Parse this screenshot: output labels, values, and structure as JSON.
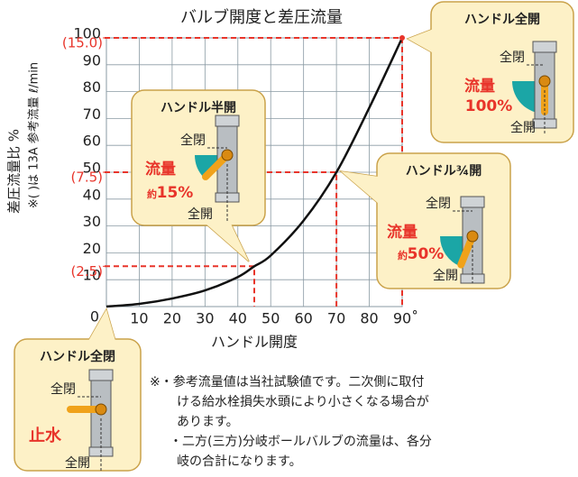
{
  "chart_data": {
    "type": "line",
    "title": "バルブ開度と差圧流量",
    "x_label": "ハンドル開度",
    "y_label": "差圧流量比 %",
    "y_label_note": "※( )は 13A 参考流量 ℓ/min",
    "x": [
      0,
      10,
      20,
      30,
      40,
      45,
      50,
      60,
      70,
      80,
      90
    ],
    "series": [
      {
        "color": "#111111",
        "values": [
          0,
          1,
          3,
          6,
          11,
          15,
          19,
          32,
          50,
          74,
          100
        ]
      }
    ],
    "xlim": [
      0,
      90
    ],
    "ylim": [
      0,
      100
    ],
    "xticks": [
      10,
      20,
      30,
      40,
      50,
      60,
      70,
      80,
      {
        "value": 90,
        "label": "90˚"
      }
    ],
    "yticks": [
      0,
      10,
      20,
      30,
      40,
      50,
      60,
      70,
      80,
      90,
      100
    ],
    "flow_ticks": [
      {
        "value": 100,
        "label": "(15.0)"
      },
      {
        "value": 50,
        "label": "(7.5)"
      },
      {
        "value": 15,
        "label": "(2.5)"
      }
    ],
    "reference_points": [
      {
        "x": 45,
        "y": 15
      },
      {
        "x": 70,
        "y": 50
      },
      {
        "x": 90,
        "y": 100
      }
    ],
    "reference_color": "#e8342a",
    "grid": true
  },
  "callouts": [
    {
      "title": "ハンドル全開",
      "closed": "全閉",
      "flow": "流量",
      "percent": "100%",
      "open": "全開"
    },
    {
      "title": "ハンドル半開",
      "closed": "全閉",
      "flow": "流量",
      "about": "約",
      "percent": "15%",
      "open": "全開"
    },
    {
      "title": "ハンドル¾開",
      "closed": "全閉",
      "flow": "流量",
      "about": "約",
      "percent": "50%",
      "open": "全開"
    },
    {
      "title": "ハンドル全閉",
      "closed": "全閉",
      "stop": "止水",
      "open": "全開"
    }
  ],
  "notes": [
    [
      "※・参考流量値は当社試験値です。二次側に取付",
      "ける給水栓損失水頭により小さくなる場合が",
      "あります。"
    ],
    [
      "・二方(三方)分岐ボールバルブの流量は、各分",
      "岐の合計になります。"
    ]
  ]
}
